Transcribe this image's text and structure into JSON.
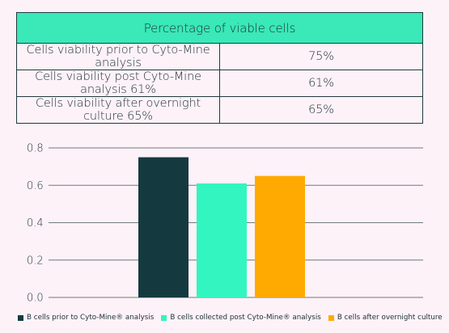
{
  "table": {
    "header": "Percentage of viable cells",
    "rows": [
      {
        "label": "Cells viability prior to Cyto-Mine analysis",
        "value": "75%"
      },
      {
        "label": "Cells viability post Cyto-Mine analysis 61%",
        "value": "61%"
      },
      {
        "label": "Cells viability after overnight culture 65%",
        "value": "65%"
      }
    ]
  },
  "colors": {
    "background": "#fcf2f8",
    "table_header": "#3ae8b8",
    "series": [
      "#143a40",
      "#33f5bf",
      "#ffaa00"
    ]
  },
  "chart_data": {
    "type": "bar",
    "categories": [
      ""
    ],
    "series": [
      {
        "name": "B cells prior to Cyto-Mine® analysis",
        "values": [
          0.75
        ]
      },
      {
        "name": "B cells collected post Cyto-Mine® analysis",
        "values": [
          0.61
        ]
      },
      {
        "name": "B cells after overnight culture",
        "values": [
          0.65
        ]
      }
    ],
    "ylim": [
      0,
      0.8
    ],
    "yticks": [
      "0.0",
      "0.2",
      "0.4",
      "0.6",
      "0.8"
    ],
    "grid": true,
    "legend_position": "bottom",
    "title": "",
    "xlabel": "",
    "ylabel": ""
  }
}
